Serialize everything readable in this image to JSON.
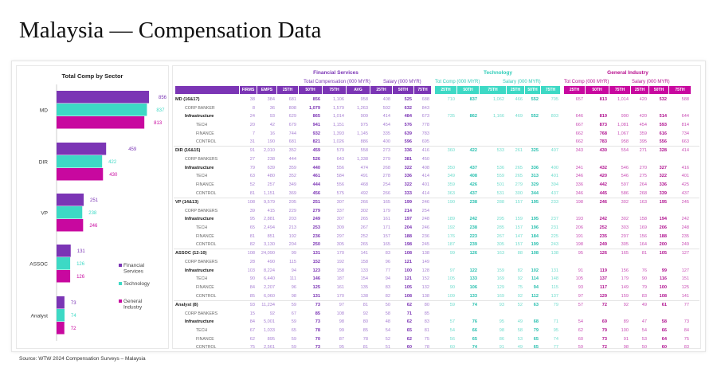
{
  "title": "Malaysia — Compensation Data",
  "source": "Source: WTW 2024 Compensation Surveys – Malaysia",
  "colors": {
    "financial": "#7b35b5",
    "technology": "#3dd9c5",
    "general": "#c8089f"
  },
  "chart_data": {
    "type": "bar",
    "orientation": "horizontal",
    "title": "Total Comp by Sector",
    "categories": [
      "MD",
      "DIR",
      "VP",
      "ASSOC",
      "Analyst"
    ],
    "series": [
      {
        "name": "Financial Services",
        "values": [
          856,
          459,
          251,
          131,
          73
        ]
      },
      {
        "name": "Technology",
        "values": [
          837,
          422,
          238,
          126,
          74
        ]
      },
      {
        "name": "General Industry",
        "values": [
          813,
          430,
          246,
          126,
          72
        ]
      }
    ],
    "legend": "right",
    "grid": false
  },
  "table": {
    "sections": [
      {
        "title": "Financial Services",
        "subs": [
          "Total Compensation (000 MYR)",
          "Salary (000 MYR)"
        ],
        "cols": [
          "FIRMS",
          "EMPS",
          "25TH",
          "50TH",
          "75TH",
          "AVG",
          "25TH",
          "50TH",
          "75TH"
        ]
      },
      {
        "title": "Technology",
        "subs": [
          "Tot Comp (000 MYR)",
          "Salary (000 MYR)"
        ],
        "cols": [
          "25TH",
          "50TH",
          "75TH",
          "25TH",
          "50TH",
          "75TH"
        ]
      },
      {
        "title": "General Industry",
        "subs": [
          "Tot Comp (000 MYR)",
          "Salary (000 MYR)"
        ],
        "cols": [
          "25TH",
          "50TH",
          "75TH",
          "25TH",
          "50TH",
          "75TH"
        ]
      }
    ],
    "groups": [
      {
        "rows": [
          {
            "label": "MD (16&17)",
            "fs": [
              "38",
              "384",
              "681",
              "856",
              "1,106",
              "958",
              "408",
              "525",
              "688"
            ],
            "te": [
              "710",
              "837",
              "1,062",
              "466",
              "552",
              "705"
            ],
            "gi": [
              "657",
              "813",
              "1,014",
              "420",
              "532",
              "588"
            ]
          },
          {
            "label": "CORP BANKER",
            "fs": [
              "8",
              "36",
              "808",
              "1,079",
              "1,579",
              "1,263",
              "502",
              "632",
              "843"
            ],
            "te": [],
            "gi": []
          },
          {
            "label": "Infrastructure",
            "fs": [
              "24",
              "93",
              "629",
              "865",
              "1,014",
              "909",
              "414",
              "484",
              "673"
            ],
            "te": [
              "735",
              "862",
              "1,166",
              "469",
              "552",
              "803"
            ],
            "gi": [
              "646",
              "819",
              "990",
              "420",
              "514",
              "644"
            ]
          },
          {
            "label": "TECH",
            "fs": [
              "20",
              "42",
              "679",
              "941",
              "1,151",
              "975",
              "454",
              "576",
              "778"
            ],
            "te": [],
            "gi": [
              "667",
              "873",
              "1,081",
              "454",
              "593",
              "814"
            ]
          },
          {
            "label": "FINANCE",
            "fs": [
              "7",
              "16",
              "744",
              "932",
              "1,393",
              "1,145",
              "335",
              "639",
              "783"
            ],
            "te": [],
            "gi": [
              "662",
              "768",
              "1,067",
              "359",
              "616",
              "734"
            ]
          },
          {
            "label": "CONTROL",
            "fs": [
              "31",
              "190",
              "681",
              "821",
              "1,026",
              "886",
              "400",
              "596",
              "695"
            ],
            "te": [],
            "gi": [
              "662",
              "783",
              "958",
              "395",
              "556",
              "663"
            ]
          }
        ]
      },
      {
        "rows": [
          {
            "label": "DIR (16&15)",
            "fs": [
              "91",
              "2,010",
              "352",
              "459",
              "579",
              "558",
              "273",
              "336",
              "416"
            ],
            "te": [
              "360",
              "422",
              "533",
              "261",
              "325",
              "407"
            ],
            "gi": [
              "343",
              "430",
              "554",
              "271",
              "328",
              "414"
            ]
          },
          {
            "label": "CORP BANKERS",
            "fs": [
              "27",
              "238",
              "444",
              "526",
              "643",
              "1,338",
              "279",
              "381",
              "450"
            ],
            "te": [],
            "gi": []
          },
          {
            "label": "Infrastructure",
            "fs": [
              "79",
              "639",
              "359",
              "440",
              "556",
              "474",
              "268",
              "322",
              "408"
            ],
            "te": [
              "350",
              "437",
              "536",
              "265",
              "336",
              "400"
            ],
            "gi": [
              "341",
              "432",
              "546",
              "270",
              "327",
              "416"
            ]
          },
          {
            "label": "TECH",
            "fs": [
              "63",
              "480",
              "352",
              "461",
              "584",
              "491",
              "278",
              "336",
              "414"
            ],
            "te": [
              "349",
              "408",
              "559",
              "265",
              "313",
              "401"
            ],
            "gi": [
              "346",
              "420",
              "546",
              "275",
              "322",
              "401"
            ]
          },
          {
            "label": "FINANCE",
            "fs": [
              "52",
              "257",
              "349",
              "444",
              "556",
              "468",
              "254",
              "322",
              "401"
            ],
            "te": [
              "359",
              "426",
              "501",
              "279",
              "329",
              "394"
            ],
            "gi": [
              "336",
              "442",
              "597",
              "264",
              "336",
              "425"
            ]
          },
          {
            "label": "CONTROL",
            "fs": [
              "81",
              "1,151",
              "369",
              "456",
              "575",
              "492",
              "266",
              "333",
              "414"
            ],
            "te": [
              "363",
              "437",
              "531",
              "300",
              "344",
              "437"
            ],
            "gi": [
              "346",
              "445",
              "586",
              "268",
              "339",
              "437"
            ]
          }
        ]
      },
      {
        "rows": [
          {
            "label": "VP (14&13)",
            "fs": [
              "108",
              "9,579",
              "205",
              "251",
              "307",
              "266",
              "165",
              "199",
              "246"
            ],
            "te": [
              "190",
              "238",
              "288",
              "157",
              "195",
              "233"
            ],
            "gi": [
              "198",
              "246",
              "302",
              "163",
              "195",
              "245"
            ]
          },
          {
            "label": "CORP BANKERS",
            "fs": [
              "39",
              "415",
              "229",
              "279",
              "337",
              "302",
              "179",
              "214",
              "254"
            ],
            "te": [],
            "gi": []
          },
          {
            "label": "Infrastructure",
            "fs": [
              "95",
              "2,881",
              "203",
              "249",
              "307",
              "265",
              "161",
              "197",
              "248"
            ],
            "te": [
              "189",
              "242",
              "295",
              "159",
              "195",
              "237"
            ],
            "gi": [
              "193",
              "242",
              "302",
              "158",
              "194",
              "242"
            ]
          },
          {
            "label": "TECH",
            "fs": [
              "65",
              "2,494",
              "213",
              "253",
              "309",
              "267",
              "171",
              "204",
              "246"
            ],
            "te": [
              "192",
              "238",
              "285",
              "157",
              "196",
              "231"
            ],
            "gi": [
              "206",
              "252",
              "303",
              "169",
              "206",
              "248"
            ]
          },
          {
            "label": "FINANCE",
            "fs": [
              "81",
              "851",
              "192",
              "236",
              "297",
              "252",
              "157",
              "188",
              "236"
            ],
            "te": [
              "176",
              "223",
              "267",
              "147",
              "184",
              "225"
            ],
            "gi": [
              "191",
              "235",
              "297",
              "156",
              "188",
              "235"
            ]
          },
          {
            "label": "CONTROL",
            "fs": [
              "82",
              "3,130",
              "204",
              "250",
              "305",
              "265",
              "165",
              "198",
              "245"
            ],
            "te": [
              "187",
              "239",
              "305",
              "157",
              "199",
              "243"
            ],
            "gi": [
              "198",
              "249",
              "305",
              "164",
              "200",
              "249"
            ]
          }
        ]
      },
      {
        "rows": [
          {
            "label": "ASSOC (12-10)",
            "fs": [
              "108",
              "24,090",
              "99",
              "131",
              "170",
              "141",
              "83",
              "108",
              "138"
            ],
            "te": [
              "99",
              "126",
              "163",
              "88",
              "108",
              "138"
            ],
            "gi": [
              "95",
              "126",
              "165",
              "81",
              "105",
              "127"
            ]
          },
          {
            "label": "CORP BANKERS",
            "fs": [
              "28",
              "490",
              "115",
              "152",
              "192",
              "158",
              "96",
              "121",
              "149"
            ],
            "te": [],
            "gi": []
          },
          {
            "label": "Infrastructure",
            "fs": [
              "103",
              "8,224",
              "94",
              "123",
              "158",
              "133",
              "77",
              "100",
              "128"
            ],
            "te": [
              "97",
              "122",
              "159",
              "82",
              "102",
              "131"
            ],
            "gi": [
              "91",
              "119",
              "156",
              "76",
              "99",
              "127"
            ]
          },
          {
            "label": "TECH",
            "fs": [
              "90",
              "6,440",
              "111",
              "146",
              "187",
              "154",
              "94",
              "121",
              "152"
            ],
            "te": [
              "105",
              "133",
              "169",
              "92",
              "114",
              "148"
            ],
            "gi": [
              "105",
              "137",
              "179",
              "90",
              "116",
              "151"
            ]
          },
          {
            "label": "FINANCE",
            "fs": [
              "84",
              "2,207",
              "96",
              "125",
              "161",
              "135",
              "83",
              "105",
              "132"
            ],
            "te": [
              "90",
              "106",
              "129",
              "75",
              "94",
              "115"
            ],
            "gi": [
              "93",
              "117",
              "149",
              "79",
              "100",
              "125"
            ]
          },
          {
            "label": "CONTROL",
            "fs": [
              "85",
              "6,060",
              "98",
              "131",
              "170",
              "138",
              "82",
              "108",
              "138"
            ],
            "te": [
              "109",
              "133",
              "169",
              "92",
              "112",
              "137"
            ],
            "gi": [
              "97",
              "129",
              "159",
              "83",
              "108",
              "141"
            ]
          }
        ]
      },
      {
        "rows": [
          {
            "label": "Analyst (8)",
            "fs": [
              "93",
              "11,234",
              "59",
              "73",
              "97",
              "81",
              "50",
              "62",
              "80"
            ],
            "te": [
              "59",
              "74",
              "93",
              "52",
              "63",
              "79"
            ],
            "gi": [
              "57",
              "72",
              "92",
              "49",
              "61",
              "77"
            ]
          },
          {
            "label": "CORP BANKERS",
            "fs": [
              "15",
              "92",
              "67",
              "85",
              "108",
              "92",
              "58",
              "71",
              "85"
            ],
            "te": [],
            "gi": []
          },
          {
            "label": "Infrastructure",
            "fs": [
              "84",
              "5,001",
              "59",
              "73",
              "98",
              "80",
              "48",
              "62",
              "83"
            ],
            "te": [
              "57",
              "76",
              "95",
              "49",
              "68",
              "71"
            ],
            "gi": [
              "54",
              "69",
              "89",
              "47",
              "58",
              "73"
            ]
          },
          {
            "label": "TECH",
            "fs": [
              "67",
              "1,033",
              "65",
              "78",
              "99",
              "85",
              "54",
              "65",
              "81"
            ],
            "te": [
              "54",
              "66",
              "98",
              "58",
              "79",
              "95"
            ],
            "gi": [
              "62",
              "79",
              "100",
              "54",
              "66",
              "84"
            ]
          },
          {
            "label": "FINANCE",
            "fs": [
              "62",
              "895",
              "59",
              "70",
              "87",
              "78",
              "52",
              "62",
              "75"
            ],
            "te": [
              "56",
              "65",
              "86",
              "53",
              "65",
              "74"
            ],
            "gi": [
              "60",
              "73",
              "91",
              "53",
              "64",
              "75"
            ]
          },
          {
            "label": "CONTROL",
            "fs": [
              "75",
              "2,561",
              "59",
              "73",
              "95",
              "81",
              "51",
              "60",
              "78"
            ],
            "te": [
              "60",
              "74",
              "91",
              "49",
              "65",
              "77"
            ],
            "gi": [
              "59",
              "72",
              "98",
              "50",
              "60",
              "83"
            ]
          }
        ]
      }
    ]
  }
}
